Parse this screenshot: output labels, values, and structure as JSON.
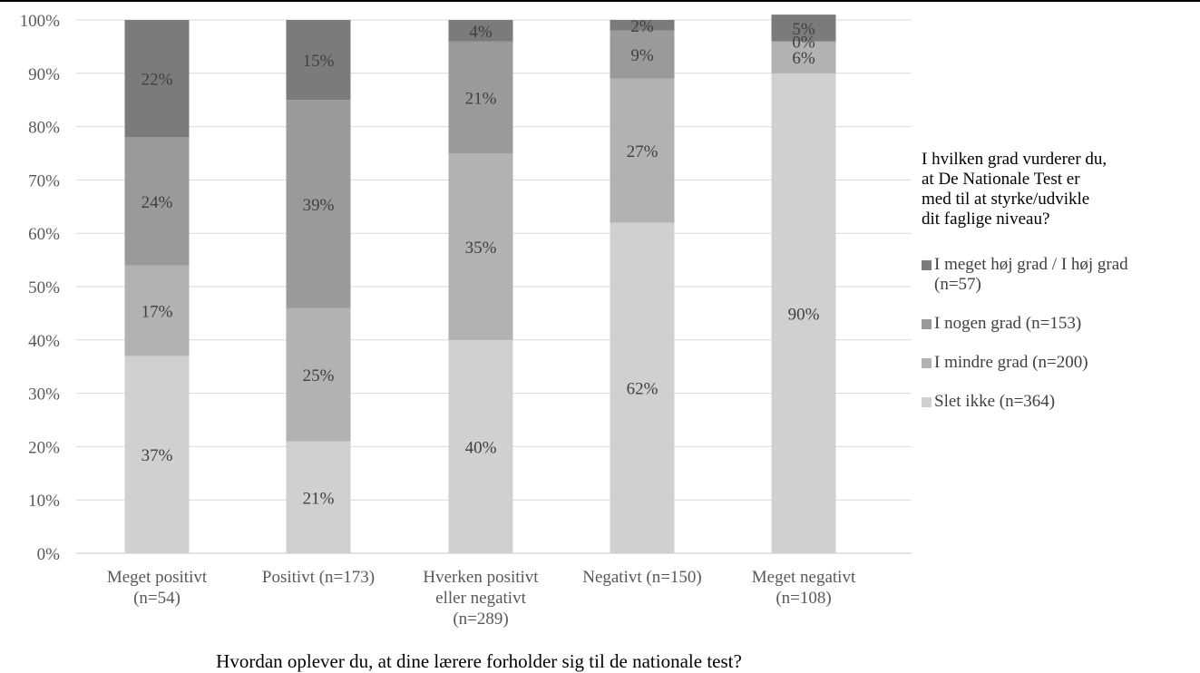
{
  "chart_data": {
    "type": "bar",
    "stacked": true,
    "percent": true,
    "categories": [
      [
        "Meget positivt",
        "(n=54)"
      ],
      [
        "Positivt (n=173)"
      ],
      [
        "Hverken positivt",
        "eller negativt",
        "(n=289)"
      ],
      [
        "Negativt (n=150)"
      ],
      [
        "Meget negativt",
        "(n=108)"
      ]
    ],
    "series": [
      {
        "name": "Slet ikke (n=364)",
        "values": [
          37,
          21,
          40,
          62,
          90
        ],
        "labels": [
          "37%",
          "21%",
          "40%",
          "62%",
          "90%"
        ],
        "color": "#d0d0d0"
      },
      {
        "name": "I mindre grad (n=200)",
        "values": [
          17,
          25,
          35,
          27,
          6
        ],
        "labels": [
          "17%",
          "25%",
          "35%",
          "27%",
          "6%"
        ],
        "color": "#b2b2b2"
      },
      {
        "name": "I nogen grad (n=153)",
        "values": [
          24,
          39,
          21,
          9,
          0
        ],
        "labels": [
          "24%",
          "39%",
          "21%",
          "9%",
          "0%"
        ],
        "color": "#9a9a9a"
      },
      {
        "name": "I meget høj grad / I høj grad\n(n=57)",
        "values": [
          22,
          15,
          4,
          2,
          5
        ],
        "labels": [
          "22%",
          "15%",
          "4%",
          "2%",
          "5%"
        ],
        "color": "#7b7b7b"
      }
    ],
    "yticks": [
      "0%",
      "10%",
      "20%",
      "30%",
      "40%",
      "50%",
      "60%",
      "70%",
      "80%",
      "90%",
      "100%"
    ],
    "ylim": [
      0,
      100
    ],
    "xlabel": "Hvordan oplever du, at dine lærere forholder sig til de nationale test?",
    "legend_title": "I hvilken grad vurderer du,\nat De Nationale Test er\nmed til at styrke/udvikle\ndit faglige niveau?",
    "legend_position": "right",
    "grid": true
  }
}
